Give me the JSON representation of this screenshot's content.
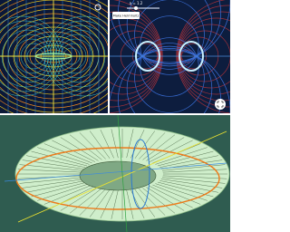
{
  "slider_label": "a = 1.2",
  "button": "Make Helmholtz"
}
